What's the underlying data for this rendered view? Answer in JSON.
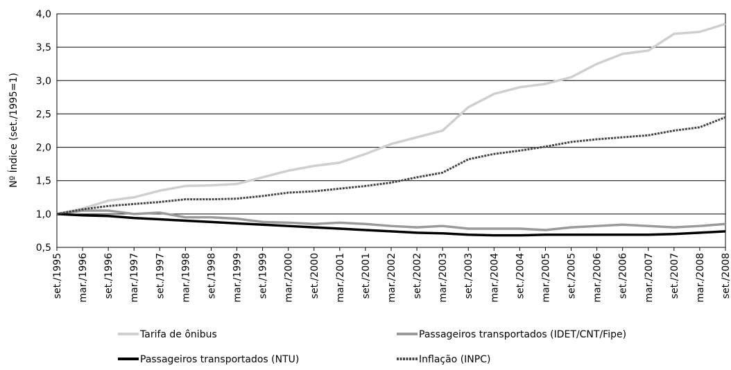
{
  "chart_data": {
    "type": "line",
    "y_label": "Nº Índice (set./1995=1)",
    "categories": [
      "set./1995",
      "mar./1996",
      "set./1996",
      "mar./1997",
      "set./1997",
      "mar./1998",
      "set./1998",
      "mar./1999",
      "set./1999",
      "mar./2000",
      "set./2000",
      "mar./2001",
      "set./2001",
      "mar./2002",
      "set./2002",
      "mar./2003",
      "set./2003",
      "mar./2004",
      "set./2004",
      "mar./2005",
      "set./2005",
      "mar./2006",
      "set./2006",
      "mar./2007",
      "set./2007",
      "mar./2008",
      "set./2008"
    ],
    "ylim": [
      0.5,
      4.0
    ],
    "yticks": [
      {
        "value": 0.5,
        "label": "0,5"
      },
      {
        "value": 1.0,
        "label": "1,0"
      },
      {
        "value": 1.5,
        "label": "1,5"
      },
      {
        "value": 2.0,
        "label": "2,0"
      },
      {
        "value": 2.5,
        "label": "2,5"
      },
      {
        "value": 3.0,
        "label": "3,0"
      },
      {
        "value": 3.5,
        "label": "3,5"
      },
      {
        "value": 4.0,
        "label": "4,0"
      }
    ],
    "grid": true,
    "series": [
      {
        "name": "Tarifa de ônibus",
        "color": "#cfcfcf",
        "values": [
          1.0,
          1.08,
          1.2,
          1.25,
          1.35,
          1.42,
          1.43,
          1.45,
          1.55,
          1.65,
          1.72,
          1.77,
          1.9,
          2.05,
          2.15,
          2.25,
          2.6,
          2.8,
          2.9,
          2.95,
          3.05,
          3.25,
          3.4,
          3.45,
          3.7,
          3.73,
          3.85
        ]
      },
      {
        "name": "Passageiros transportados (IDET/CNT/Fipe)",
        "color": "#9a9a9a",
        "values": [
          1.0,
          1.05,
          1.05,
          1.0,
          1.02,
          0.95,
          0.95,
          0.93,
          0.88,
          0.87,
          0.85,
          0.87,
          0.85,
          0.82,
          0.8,
          0.82,
          0.78,
          0.78,
          0.78,
          0.76,
          0.8,
          0.82,
          0.84,
          0.82,
          0.8,
          0.82,
          0.85
        ]
      },
      {
        "name": "Passageiros transportados (NTU)",
        "color": "#000000",
        "values": [
          1.0,
          0.98,
          0.97,
          0.94,
          0.92,
          0.9,
          0.88,
          0.86,
          0.84,
          0.82,
          0.8,
          0.78,
          0.76,
          0.74,
          0.72,
          0.71,
          0.69,
          0.68,
          0.68,
          0.69,
          0.69,
          0.69,
          0.69,
          0.69,
          0.7,
          0.72,
          0.74
        ]
      },
      {
        "name": "Inflação (INPC)",
        "color": "#444444",
        "dashed": true,
        "values": [
          1.0,
          1.07,
          1.12,
          1.15,
          1.18,
          1.22,
          1.22,
          1.23,
          1.27,
          1.32,
          1.34,
          1.38,
          1.42,
          1.47,
          1.55,
          1.62,
          1.82,
          1.9,
          1.95,
          2.01,
          2.08,
          2.12,
          2.15,
          2.18,
          2.25,
          2.3,
          2.45
        ]
      }
    ]
  }
}
